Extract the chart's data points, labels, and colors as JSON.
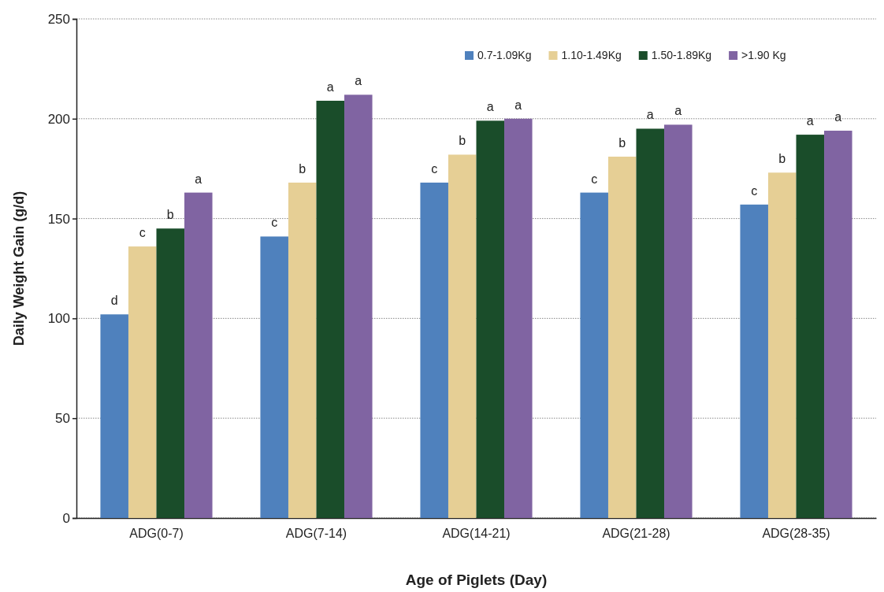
{
  "chart_data": {
    "type": "bar",
    "xlabel": "Age of Piglets (Day)",
    "ylabel": "Daily Weight Gain (g/d)",
    "categories": [
      "ADG(0-7)",
      "ADG(7-14)",
      "ADG(14-21)",
      "ADG(21-28)",
      "ADG(28-35)"
    ],
    "ylim": [
      0,
      250
    ],
    "yticks": [
      0,
      50,
      100,
      150,
      200,
      250
    ],
    "grid": "y",
    "legend": "top right",
    "series": [
      {
        "name": "0.7-1.09Kg",
        "color": "#4f81bd",
        "values": [
          102,
          141,
          168,
          163,
          157
        ],
        "value_labels": [
          "d",
          "c",
          "c",
          "c",
          "c"
        ]
      },
      {
        "name": "1.10-1.49Kg",
        "color": "#e6cf95",
        "values": [
          136,
          168,
          182,
          181,
          173
        ],
        "value_labels": [
          "c",
          "b",
          "b",
          "b",
          "b"
        ]
      },
      {
        "name": "1.50-1.89Kg",
        "color": "#1a4d2a",
        "values": [
          145,
          209,
          199,
          195,
          192
        ],
        "value_labels": [
          "b",
          "a",
          "a",
          "a",
          "a"
        ]
      },
      {
        "name": ">1.90 Kg",
        "color": "#8064a2",
        "values": [
          163,
          212,
          200,
          197,
          194
        ],
        "value_labels": [
          "a",
          "a",
          "a",
          "a",
          "a"
        ]
      }
    ]
  }
}
